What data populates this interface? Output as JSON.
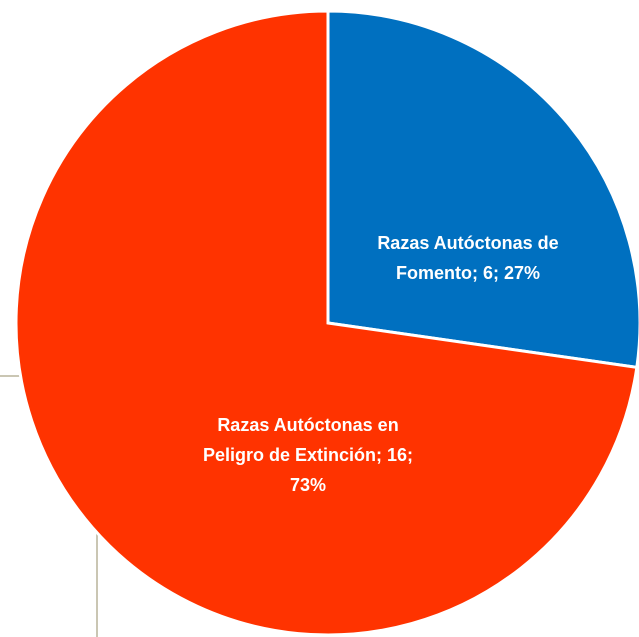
{
  "chart_data": {
    "type": "pie",
    "values": [
      6,
      16
    ],
    "value_labels": [
      "Razas Autóctonas de Fomento; 6; 27%",
      "Razas Autóctonas en Peligro de Extinción; 16; 73%"
    ],
    "colors": [
      "#0070c0",
      "#ff3300"
    ]
  }
}
